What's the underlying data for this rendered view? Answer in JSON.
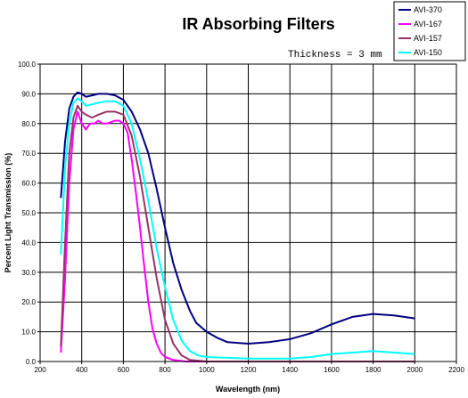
{
  "chart_data": {
    "type": "line",
    "title": "IR Absorbing Filters",
    "annotation": "Thickness = 3 mm",
    "xlabel": "Wavelength (nm)",
    "ylabel": "Percent Light Transmission (%)",
    "xlim": [
      200,
      2200
    ],
    "ylim": [
      0,
      100
    ],
    "x_ticks": [
      200,
      400,
      600,
      800,
      1000,
      1200,
      1400,
      1600,
      1800,
      2000,
      2200
    ],
    "y_ticks": [
      0,
      10,
      20,
      30,
      40,
      50,
      60,
      70,
      80,
      90,
      100
    ],
    "y_tick_labels": [
      "0.0",
      "10.0",
      "20.0",
      "30.0",
      "40.0",
      "50.0",
      "60.0",
      "70.0",
      "80.0",
      "90.0",
      "100.0"
    ],
    "grid": "vertical",
    "legend_position": "top-right",
    "series": [
      {
        "name": "AVI-370",
        "color": "#000080",
        "points": [
          [
            300,
            55
          ],
          [
            320,
            74
          ],
          [
            340,
            85
          ],
          [
            360,
            89
          ],
          [
            380,
            90.5
          ],
          [
            400,
            90
          ],
          [
            420,
            89
          ],
          [
            450,
            89.5
          ],
          [
            480,
            90
          ],
          [
            520,
            90
          ],
          [
            560,
            89.5
          ],
          [
            600,
            88
          ],
          [
            640,
            84
          ],
          [
            680,
            78
          ],
          [
            720,
            70
          ],
          [
            760,
            58
          ],
          [
            800,
            45
          ],
          [
            840,
            33
          ],
          [
            880,
            24
          ],
          [
            920,
            17
          ],
          [
            950,
            13
          ],
          [
            1000,
            10
          ],
          [
            1050,
            8
          ],
          [
            1100,
            6.5
          ],
          [
            1200,
            6
          ],
          [
            1300,
            6.5
          ],
          [
            1400,
            7.5
          ],
          [
            1500,
            9.5
          ],
          [
            1600,
            12.5
          ],
          [
            1700,
            15
          ],
          [
            1800,
            16
          ],
          [
            1900,
            15.5
          ],
          [
            2000,
            14.5
          ]
        ]
      },
      {
        "name": "AVI-167",
        "color": "#ff00ff",
        "points": [
          [
            300,
            3
          ],
          [
            320,
            28
          ],
          [
            340,
            60
          ],
          [
            360,
            78
          ],
          [
            380,
            84
          ],
          [
            400,
            80
          ],
          [
            420,
            78
          ],
          [
            440,
            80
          ],
          [
            460,
            80
          ],
          [
            480,
            81
          ],
          [
            500,
            80
          ],
          [
            520,
            80
          ],
          [
            560,
            81
          ],
          [
            580,
            81
          ],
          [
            600,
            80
          ],
          [
            620,
            77
          ],
          [
            640,
            68
          ],
          [
            660,
            57
          ],
          [
            680,
            45
          ],
          [
            700,
            32
          ],
          [
            720,
            20
          ],
          [
            740,
            11
          ],
          [
            760,
            6
          ],
          [
            780,
            3
          ],
          [
            800,
            1.5
          ],
          [
            840,
            0.5
          ],
          [
            900,
            0
          ],
          [
            1000,
            0
          ],
          [
            1200,
            0
          ],
          [
            1400,
            0
          ],
          [
            1600,
            0
          ],
          [
            1800,
            0
          ],
          [
            2000,
            0
          ]
        ]
      },
      {
        "name": "AVI-157",
        "color": "#993366",
        "points": [
          [
            300,
            5
          ],
          [
            320,
            40
          ],
          [
            340,
            70
          ],
          [
            360,
            82
          ],
          [
            380,
            86
          ],
          [
            400,
            84
          ],
          [
            420,
            83
          ],
          [
            450,
            82
          ],
          [
            480,
            83
          ],
          [
            520,
            84
          ],
          [
            560,
            84
          ],
          [
            600,
            83
          ],
          [
            640,
            76
          ],
          [
            680,
            62
          ],
          [
            720,
            45
          ],
          [
            760,
            28
          ],
          [
            800,
            14
          ],
          [
            840,
            6
          ],
          [
            880,
            2
          ],
          [
            920,
            0.5
          ],
          [
            1000,
            0
          ],
          [
            1200,
            0
          ],
          [
            1400,
            0
          ],
          [
            1600,
            0
          ],
          [
            1800,
            0
          ],
          [
            2000,
            0
          ]
        ]
      },
      {
        "name": "AVI-150",
        "color": "#00ffff",
        "points": [
          [
            300,
            36
          ],
          [
            320,
            65
          ],
          [
            340,
            80
          ],
          [
            360,
            87
          ],
          [
            380,
            88.5
          ],
          [
            400,
            87.5
          ],
          [
            420,
            86
          ],
          [
            450,
            86.5
          ],
          [
            480,
            87
          ],
          [
            520,
            87.5
          ],
          [
            560,
            87.5
          ],
          [
            600,
            86
          ],
          [
            640,
            80
          ],
          [
            680,
            68
          ],
          [
            720,
            54
          ],
          [
            760,
            38
          ],
          [
            800,
            25
          ],
          [
            840,
            14
          ],
          [
            880,
            7
          ],
          [
            920,
            3.5
          ],
          [
            960,
            2
          ],
          [
            1000,
            1.5
          ],
          [
            1200,
            1
          ],
          [
            1400,
            1
          ],
          [
            1500,
            1.5
          ],
          [
            1600,
            2.5
          ],
          [
            1700,
            3
          ],
          [
            1800,
            3.5
          ],
          [
            1900,
            3
          ],
          [
            2000,
            2.5
          ]
        ]
      }
    ]
  }
}
